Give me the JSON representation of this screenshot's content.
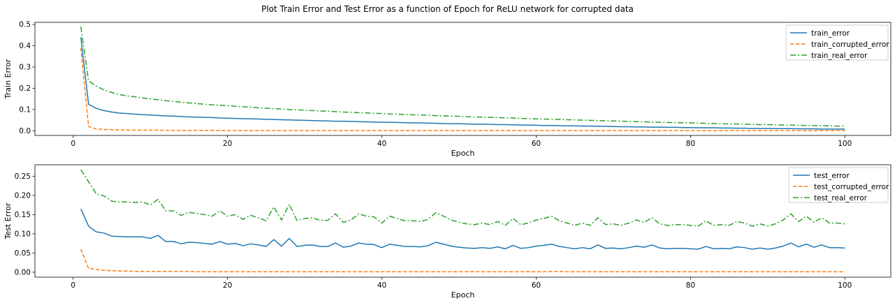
{
  "figure": {
    "title": "Plot Train Error and Test Error as a function of Epoch for ReLU network for corrupted data"
  },
  "chart_data": [
    {
      "type": "line",
      "xlabel": "Epoch",
      "ylabel": "Train Error",
      "xlim": [
        -4.95,
        105.95
      ],
      "ylim": [
        -0.022,
        0.51
      ],
      "xticks": [
        0,
        20,
        40,
        60,
        80,
        100
      ],
      "yticks": [
        0.0,
        0.1,
        0.2,
        0.3,
        0.4,
        0.5
      ],
      "ytick_labels": [
        "0.0",
        "0.1",
        "0.2",
        "0.3",
        "0.4",
        "0.5"
      ],
      "legend_position": "top-right",
      "grid": false,
      "x": [
        1,
        2,
        3,
        4,
        5,
        6,
        7,
        8,
        9,
        10,
        11,
        12,
        13,
        14,
        15,
        16,
        17,
        18,
        19,
        20,
        21,
        22,
        23,
        24,
        25,
        26,
        27,
        28,
        29,
        30,
        31,
        32,
        33,
        34,
        35,
        36,
        37,
        38,
        39,
        40,
        41,
        42,
        43,
        44,
        45,
        46,
        47,
        48,
        49,
        50,
        51,
        52,
        53,
        54,
        55,
        56,
        57,
        58,
        59,
        60,
        61,
        62,
        63,
        64,
        65,
        66,
        67,
        68,
        69,
        70,
        71,
        72,
        73,
        74,
        75,
        76,
        77,
        78,
        79,
        80,
        81,
        82,
        83,
        84,
        85,
        86,
        87,
        88,
        89,
        90,
        91,
        92,
        93,
        94,
        95,
        96,
        97,
        98,
        99,
        100
      ],
      "series": [
        {
          "name": "train_error",
          "color": "#1f77b4",
          "dash": "solid",
          "values": [
            0.44,
            0.125,
            0.105,
            0.095,
            0.088,
            0.083,
            0.081,
            0.078,
            0.076,
            0.074,
            0.072,
            0.07,
            0.069,
            0.067,
            0.065,
            0.064,
            0.063,
            0.062,
            0.06,
            0.059,
            0.058,
            0.057,
            0.056,
            0.055,
            0.054,
            0.053,
            0.052,
            0.051,
            0.05,
            0.049,
            0.048,
            0.047,
            0.046,
            0.045,
            0.045,
            0.044,
            0.043,
            0.042,
            0.041,
            0.04,
            0.04,
            0.039,
            0.038,
            0.037,
            0.037,
            0.036,
            0.035,
            0.034,
            0.033,
            0.033,
            0.032,
            0.031,
            0.031,
            0.03,
            0.029,
            0.029,
            0.028,
            0.027,
            0.027,
            0.026,
            0.025,
            0.025,
            0.024,
            0.023,
            0.023,
            0.022,
            0.022,
            0.021,
            0.021,
            0.02,
            0.019,
            0.019,
            0.018,
            0.018,
            0.017,
            0.017,
            0.016,
            0.016,
            0.015,
            0.015,
            0.014,
            0.014,
            0.014,
            0.013,
            0.013,
            0.012,
            0.012,
            0.011,
            0.011,
            0.011,
            0.01,
            0.01,
            0.01,
            0.009,
            0.009,
            0.009,
            0.008,
            0.008,
            0.008,
            0.008
          ]
        },
        {
          "name": "train_corrupted_error",
          "color": "#ff7f0e",
          "dash": "dashed",
          "values": [
            0.39,
            0.02,
            0.008,
            0.006,
            0.005,
            0.004,
            0.004,
            0.003,
            0.003,
            0.003,
            0.003,
            0.002,
            0.002,
            0.002,
            0.002,
            0.002,
            0.002,
            0.002,
            0.002,
            0.001,
            0.001,
            0.001,
            0.001,
            0.001,
            0.001,
            0.001,
            0.001,
            0.001,
            0.001,
            0.001,
            0.001,
            0.001,
            0.001,
            0.001,
            0.001,
            0.001,
            0.001,
            0.001,
            0.001,
            0.001,
            0.001,
            0.001,
            0.001,
            0.001,
            0.001,
            0.001,
            0.001,
            0.001,
            0.001,
            0.001,
            0.001,
            0.001,
            0.001,
            0.001,
            0.001,
            0.001,
            0.001,
            0.001,
            0.001,
            0.001,
            0.001,
            0.001,
            0.001,
            0.001,
            0.001,
            0.001,
            0.001,
            0.001,
            0.001,
            0.001,
            0.001,
            0.001,
            0.001,
            0.001,
            0.001,
            0.001,
            0.001,
            0.001,
            0.001,
            0.001,
            0.001,
            0.001,
            0.001,
            0.001,
            0.001,
            0.001,
            0.001,
            0.001,
            0.001,
            0.001,
            0.001,
            0.001,
            0.001,
            0.001,
            0.001,
            0.001,
            0.001,
            0.001,
            0.001,
            0.001
          ]
        },
        {
          "name": "train_real_error",
          "color": "#2ca02c",
          "dash": "dashdot",
          "values": [
            0.49,
            0.235,
            0.21,
            0.192,
            0.18,
            0.17,
            0.164,
            0.16,
            0.154,
            0.15,
            0.146,
            0.142,
            0.138,
            0.135,
            0.131,
            0.128,
            0.125,
            0.122,
            0.12,
            0.118,
            0.115,
            0.113,
            0.111,
            0.108,
            0.106,
            0.104,
            0.102,
            0.1,
            0.098,
            0.097,
            0.095,
            0.093,
            0.092,
            0.09,
            0.088,
            0.087,
            0.085,
            0.084,
            0.082,
            0.081,
            0.079,
            0.078,
            0.077,
            0.075,
            0.074,
            0.073,
            0.071,
            0.07,
            0.069,
            0.068,
            0.066,
            0.065,
            0.064,
            0.063,
            0.062,
            0.061,
            0.06,
            0.058,
            0.057,
            0.056,
            0.055,
            0.054,
            0.053,
            0.052,
            0.051,
            0.05,
            0.049,
            0.048,
            0.047,
            0.046,
            0.045,
            0.044,
            0.043,
            0.042,
            0.041,
            0.04,
            0.039,
            0.038,
            0.038,
            0.037,
            0.036,
            0.035,
            0.034,
            0.033,
            0.032,
            0.032,
            0.031,
            0.03,
            0.029,
            0.029,
            0.028,
            0.027,
            0.027,
            0.026,
            0.025,
            0.024,
            0.024,
            0.023,
            0.022,
            0.022
          ]
        }
      ]
    },
    {
      "type": "line",
      "xlabel": "Epoch",
      "ylabel": "Test Error",
      "xlim": [
        -4.95,
        105.95
      ],
      "ylim": [
        -0.013,
        0.28
      ],
      "xticks": [
        0,
        20,
        40,
        60,
        80,
        100
      ],
      "yticks": [
        0.0,
        0.05,
        0.1,
        0.15,
        0.2,
        0.25
      ],
      "ytick_labels": [
        "0.00",
        "0.05",
        "0.10",
        "0.15",
        "0.20",
        "0.25"
      ],
      "legend_position": "top-right",
      "grid": false,
      "x": [
        1,
        2,
        3,
        4,
        5,
        6,
        7,
        8,
        9,
        10,
        11,
        12,
        13,
        14,
        15,
        16,
        17,
        18,
        19,
        20,
        21,
        22,
        23,
        24,
        25,
        26,
        27,
        28,
        29,
        30,
        31,
        32,
        33,
        34,
        35,
        36,
        37,
        38,
        39,
        40,
        41,
        42,
        43,
        44,
        45,
        46,
        47,
        48,
        49,
        50,
        51,
        52,
        53,
        54,
        55,
        56,
        57,
        58,
        59,
        60,
        61,
        62,
        63,
        64,
        65,
        66,
        67,
        68,
        69,
        70,
        71,
        72,
        73,
        74,
        75,
        76,
        77,
        78,
        79,
        80,
        81,
        82,
        83,
        84,
        85,
        86,
        87,
        88,
        89,
        90,
        91,
        92,
        93,
        94,
        95,
        96,
        97,
        98,
        99,
        100
      ],
      "series": [
        {
          "name": "test_error",
          "color": "#1f77b4",
          "dash": "solid",
          "values": [
            0.165,
            0.12,
            0.105,
            0.102,
            0.094,
            0.093,
            0.092,
            0.092,
            0.092,
            0.088,
            0.096,
            0.08,
            0.08,
            0.074,
            0.078,
            0.077,
            0.075,
            0.073,
            0.08,
            0.073,
            0.075,
            0.069,
            0.074,
            0.071,
            0.067,
            0.085,
            0.068,
            0.088,
            0.067,
            0.07,
            0.071,
            0.067,
            0.067,
            0.076,
            0.065,
            0.068,
            0.076,
            0.073,
            0.072,
            0.064,
            0.073,
            0.07,
            0.067,
            0.067,
            0.066,
            0.069,
            0.078,
            0.073,
            0.068,
            0.065,
            0.063,
            0.062,
            0.064,
            0.062,
            0.066,
            0.061,
            0.07,
            0.062,
            0.064,
            0.068,
            0.07,
            0.073,
            0.067,
            0.064,
            0.061,
            0.064,
            0.061,
            0.071,
            0.062,
            0.063,
            0.061,
            0.064,
            0.068,
            0.065,
            0.071,
            0.063,
            0.061,
            0.062,
            0.062,
            0.061,
            0.06,
            0.067,
            0.061,
            0.062,
            0.061,
            0.066,
            0.064,
            0.06,
            0.063,
            0.06,
            0.063,
            0.068,
            0.076,
            0.066,
            0.073,
            0.065,
            0.071,
            0.064,
            0.064,
            0.063
          ]
        },
        {
          "name": "test_corrupted_error",
          "color": "#ff7f0e",
          "dash": "dashed",
          "values": [
            0.06,
            0.01,
            0.007,
            0.005,
            0.004,
            0.003,
            0.003,
            0.002,
            0.002,
            0.002,
            0.002,
            0.002,
            0.002,
            0.002,
            0.002,
            0.001,
            0.001,
            0.001,
            0.001,
            0.001,
            0.001,
            0.001,
            0.001,
            0.001,
            0.001,
            0.001,
            0.001,
            0.001,
            0.001,
            0.001,
            0.001,
            0.001,
            0.001,
            0.001,
            0.001,
            0.001,
            0.001,
            0.001,
            0.001,
            0.001,
            0.001,
            0.001,
            0.001,
            0.001,
            0.001,
            0.001,
            0.001,
            0.001,
            0.001,
            0.001,
            0.001,
            0.001,
            0.001,
            0.001,
            0.001,
            0.001,
            0.001,
            0.001,
            0.001,
            0.001,
            0.001,
            0.002,
            0.002,
            0.001,
            0.001,
            0.001,
            0.001,
            0.001,
            0.001,
            0.001,
            0.001,
            0.001,
            0.001,
            0.001,
            0.001,
            0.001,
            0.001,
            0.001,
            0.001,
            0.001,
            0.001,
            0.001,
            0.001,
            0.001,
            0.001,
            0.001,
            0.001,
            0.001,
            0.001,
            0.001,
            0.001,
            0.001,
            0.001,
            0.001,
            0.001,
            0.001,
            0.001,
            0.001,
            0.001,
            0.001
          ]
        },
        {
          "name": "test_real_error",
          "color": "#2ca02c",
          "dash": "dashdot",
          "values": [
            0.267,
            0.236,
            0.204,
            0.199,
            0.185,
            0.183,
            0.183,
            0.182,
            0.183,
            0.175,
            0.19,
            0.16,
            0.16,
            0.148,
            0.156,
            0.153,
            0.15,
            0.146,
            0.16,
            0.146,
            0.15,
            0.138,
            0.148,
            0.142,
            0.134,
            0.17,
            0.136,
            0.177,
            0.135,
            0.14,
            0.142,
            0.135,
            0.135,
            0.152,
            0.13,
            0.136,
            0.152,
            0.146,
            0.144,
            0.128,
            0.146,
            0.14,
            0.134,
            0.134,
            0.132,
            0.138,
            0.155,
            0.146,
            0.136,
            0.13,
            0.126,
            0.124,
            0.128,
            0.124,
            0.132,
            0.122,
            0.14,
            0.124,
            0.128,
            0.136,
            0.14,
            0.146,
            0.134,
            0.128,
            0.122,
            0.128,
            0.122,
            0.142,
            0.124,
            0.126,
            0.122,
            0.128,
            0.136,
            0.13,
            0.142,
            0.126,
            0.122,
            0.124,
            0.124,
            0.122,
            0.12,
            0.134,
            0.122,
            0.124,
            0.122,
            0.132,
            0.128,
            0.12,
            0.126,
            0.12,
            0.126,
            0.136,
            0.152,
            0.132,
            0.146,
            0.13,
            0.142,
            0.128,
            0.128,
            0.126
          ]
        }
      ]
    }
  ]
}
